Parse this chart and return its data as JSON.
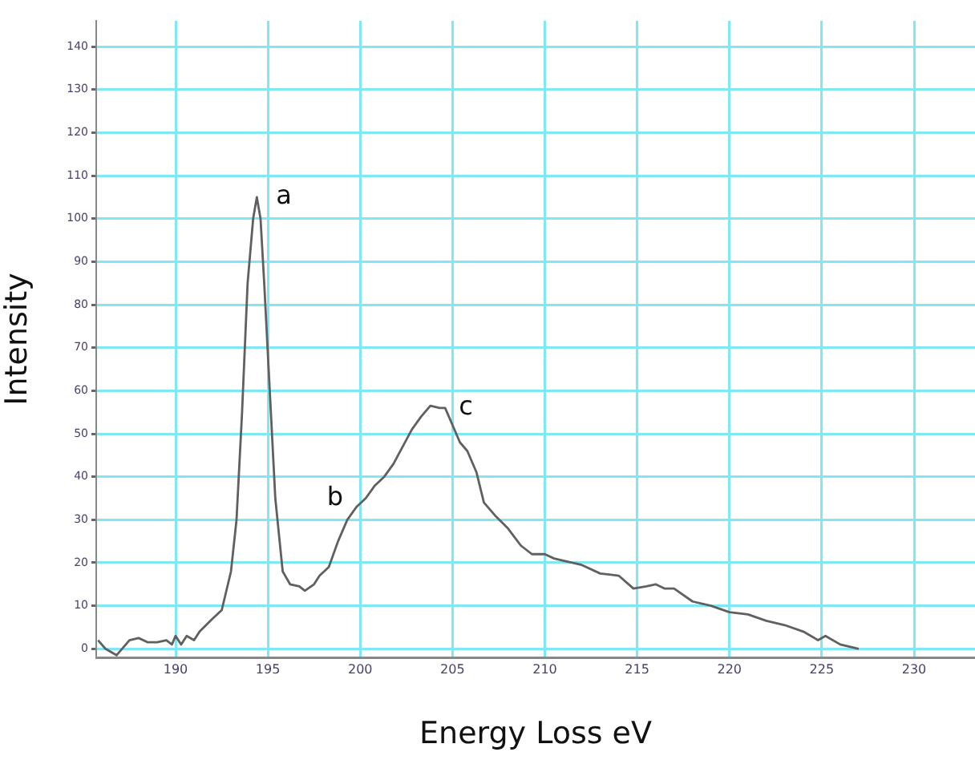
{
  "chart_data": {
    "type": "line",
    "xlabel": "Energy Loss eV",
    "ylabel": "Intensity",
    "xlim": [
      185.7,
      233.3
    ],
    "xticks": [
      190,
      195,
      200,
      205,
      210,
      215,
      220,
      225,
      230
    ],
    "ylim": [
      -2,
      146
    ],
    "yticks": [
      0,
      10,
      20,
      30,
      40,
      50,
      60,
      70,
      80,
      90,
      100,
      110,
      120,
      130,
      140
    ],
    "grid": true,
    "marker": "none",
    "line_style": "solid",
    "annotations": [
      {
        "text": "a",
        "x": 194.4,
        "y": 105
      },
      {
        "text": "b",
        "x": 200.3,
        "y": 35
      },
      {
        "text": "c",
        "x": 204.3,
        "y": 56
      }
    ],
    "series": [
      {
        "color": "#606060",
        "x": [
          185.8,
          186.2,
          186.8,
          187.5,
          188,
          188.5,
          189,
          189.5,
          189.8,
          190,
          190.3,
          190.6,
          191,
          191.3,
          192,
          192.5,
          193,
          193.3,
          193.6,
          193.9,
          194.2,
          194.4,
          194.6,
          194.8,
          195.1,
          195.4,
          195.8,
          196.2,
          196.7,
          197,
          197.5,
          197.8,
          198.3,
          198.8,
          199.3,
          199.8,
          200.3,
          200.8,
          201.3,
          201.8,
          202.3,
          202.8,
          203.3,
          203.8,
          204.3,
          204.6,
          205,
          205.4,
          205.8,
          206.3,
          206.7,
          207.3,
          208,
          208.7,
          209.3,
          210,
          210.5,
          211,
          212,
          213,
          214,
          214.8,
          215.5,
          216,
          216.5,
          217,
          218,
          219,
          220,
          221,
          222,
          223,
          224,
          224.8,
          225.2,
          226,
          227
        ],
        "values": [
          2,
          0,
          -1.5,
          2,
          2.5,
          1.5,
          1.5,
          2,
          1,
          3,
          1,
          3,
          2,
          4,
          7,
          9,
          18,
          30,
          55,
          85,
          100,
          105,
          100,
          85,
          60,
          35,
          18,
          15,
          14.5,
          13.5,
          15,
          17,
          19,
          25,
          30,
          33,
          35,
          38,
          40,
          43,
          47,
          51,
          54,
          56.5,
          56,
          56,
          52,
          48,
          46,
          41,
          34,
          31,
          28,
          24,
          22,
          22,
          21,
          20.5,
          19.5,
          17.5,
          17,
          14,
          14.5,
          15,
          14,
          14,
          11,
          10,
          8.5,
          8,
          6.5,
          5.5,
          4,
          2,
          3,
          1,
          0
        ]
      }
    ]
  }
}
